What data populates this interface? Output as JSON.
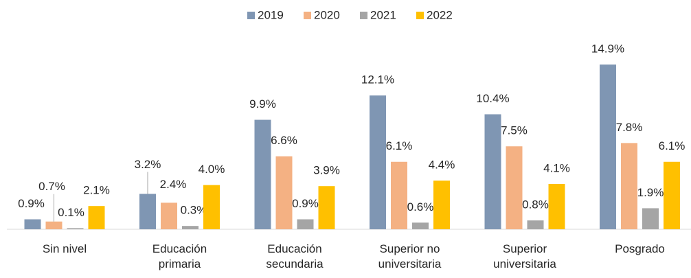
{
  "chart_data": {
    "type": "bar",
    "categories": [
      "Sin nivel",
      "Educación primaria",
      "Educación secundaria",
      "Superior no universitaria",
      "Superior universitaria",
      "Posgrado"
    ],
    "series": [
      {
        "name": "2019",
        "color": "#7f96b3",
        "values": [
          0.9,
          3.2,
          9.9,
          12.1,
          10.4,
          14.9
        ],
        "value_labels": [
          "0.9%",
          "3.2%",
          "9.9%",
          "12.1%",
          "10.4%",
          "14.9%"
        ]
      },
      {
        "name": "2020",
        "color": "#f4b183",
        "values": [
          0.7,
          2.4,
          6.6,
          6.1,
          7.5,
          7.8
        ],
        "value_labels": [
          "0.7%",
          "2.4%",
          "6.6%",
          "6.1%",
          "7.5%",
          "7.8%"
        ]
      },
      {
        "name": "2021",
        "color": "#a5a5a5",
        "values": [
          0.1,
          0.3,
          0.9,
          0.6,
          0.8,
          1.9
        ],
        "value_labels": [
          "0.1%",
          "0.3%",
          "0.9%",
          "0.6%",
          "0.8%",
          "1.9%"
        ]
      },
      {
        "name": "2022",
        "color": "#ffc000",
        "values": [
          2.1,
          4.0,
          3.9,
          4.4,
          4.1,
          6.1
        ],
        "value_labels": [
          "2.1%",
          "4.0%",
          "3.9%",
          "4.4%",
          "4.1%",
          "6.1%"
        ]
      }
    ],
    "legend": "top"
  }
}
